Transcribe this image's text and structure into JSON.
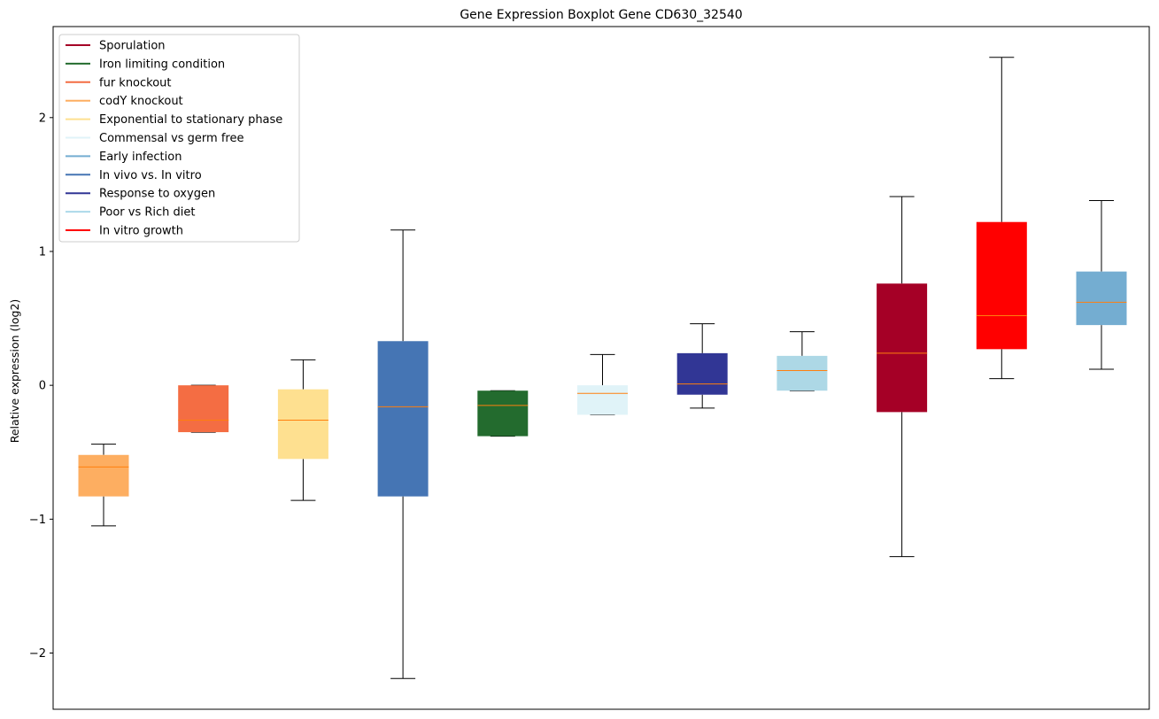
{
  "chart_data": {
    "type": "boxplot",
    "title": "Gene Expression Boxplot Gene CD630_32540",
    "xlabel": "",
    "ylabel": "Relative expression (log2)",
    "ylim": [
      -2.42,
      2.68
    ],
    "yticks": [
      -2,
      -1,
      0,
      1,
      2
    ],
    "ytick_labels": [
      "−2",
      "−1",
      "0",
      "1",
      "2"
    ],
    "grid": false,
    "legend_position": "top-left",
    "legend": [
      {
        "label": "Sporulation",
        "color": "#a50026"
      },
      {
        "label": "Iron limiting condition",
        "color": "#236b2e"
      },
      {
        "label": "fur knockout",
        "color": "#f46d43"
      },
      {
        "label": "codY knockout",
        "color": "#fdae61"
      },
      {
        "label": "Exponential to stationary phase",
        "color": "#fee090"
      },
      {
        "label": "Commensal vs germ free",
        "color": "#e0f3f8"
      },
      {
        "label": "Early infection",
        "color": "#74add1"
      },
      {
        "label": "In vivo vs. In vitro",
        "color": "#4575b4"
      },
      {
        "label": "Response to oxygen",
        "color": "#313695"
      },
      {
        "label": "Poor vs Rich diet",
        "color": "#abd9e9"
      },
      {
        "label": "In vitro growth",
        "color": "#ff0000"
      }
    ],
    "median_color": "#ff7f0e",
    "boxes": [
      {
        "group": "codY knockout",
        "color": "#fdae61",
        "whisker_low": -1.05,
        "q1": -0.83,
        "median": -0.61,
        "q3": -0.52,
        "whisker_high": -0.44
      },
      {
        "group": "fur knockout",
        "color": "#f46d43",
        "whisker_low": -0.35,
        "q1": -0.35,
        "median": -0.26,
        "q3": 0.0,
        "whisker_high": 0.0
      },
      {
        "group": "Exponential to stationary phase",
        "color": "#fee090",
        "whisker_low": -0.86,
        "q1": -0.55,
        "median": -0.26,
        "q3": -0.03,
        "whisker_high": 0.19
      },
      {
        "group": "In vivo vs. In vitro",
        "color": "#4575b4",
        "whisker_low": -2.19,
        "q1": -0.83,
        "median": -0.16,
        "q3": 0.33,
        "whisker_high": 1.16
      },
      {
        "group": "Iron limiting condition",
        "color": "#236b2e",
        "whisker_low": -0.38,
        "q1": -0.38,
        "median": -0.15,
        "q3": -0.04,
        "whisker_high": -0.04
      },
      {
        "group": "Commensal vs germ free",
        "color": "#e0f3f8",
        "whisker_low": -0.22,
        "q1": -0.22,
        "median": -0.06,
        "q3": 0.0,
        "whisker_high": 0.23
      },
      {
        "group": "Response to oxygen",
        "color": "#313695",
        "whisker_low": -0.17,
        "q1": -0.07,
        "median": 0.01,
        "q3": 0.24,
        "whisker_high": 0.46
      },
      {
        "group": "Poor vs Rich diet",
        "color": "#add8e6",
        "whisker_low": -0.04,
        "q1": -0.04,
        "median": 0.11,
        "q3": 0.22,
        "whisker_high": 0.4
      },
      {
        "group": "Sporulation",
        "color": "#a50026",
        "whisker_low": -1.28,
        "q1": -0.2,
        "median": 0.24,
        "q3": 0.76,
        "whisker_high": 1.41
      },
      {
        "group": "In vitro growth",
        "color": "#ff0000",
        "whisker_low": 0.05,
        "q1": 0.27,
        "median": 0.52,
        "q3": 1.22,
        "whisker_high": 2.45
      },
      {
        "group": "Early infection",
        "color": "#74add1",
        "whisker_low": 0.12,
        "q1": 0.45,
        "median": 0.62,
        "q3": 0.85,
        "whisker_high": 1.38
      }
    ]
  }
}
